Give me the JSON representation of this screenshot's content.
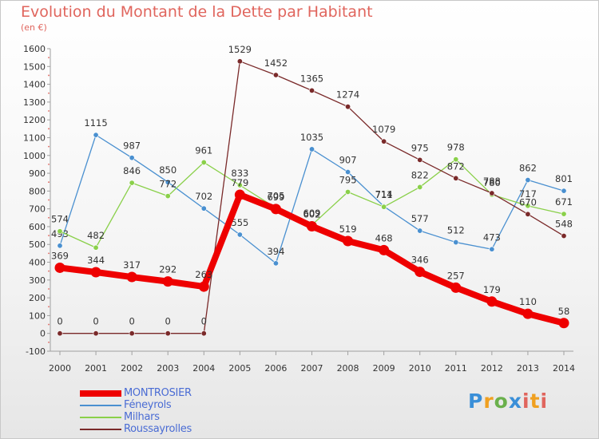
{
  "header": {
    "title": "Evolution du Montant de la Dette par Habitant",
    "subtitle": "(en €)"
  },
  "logo": {
    "text": "Proxiti",
    "letters": [
      "P",
      "r",
      "o",
      "x",
      "i",
      "t",
      "i"
    ]
  },
  "chart_data": {
    "type": "line",
    "title": "Evolution du Montant de la Dette par Habitant",
    "ylabel": "(en €)",
    "xlabel": "",
    "ylim": [
      -100,
      1600
    ],
    "yticks": [
      -100,
      0,
      100,
      200,
      300,
      400,
      500,
      600,
      700,
      800,
      900,
      1000,
      1100,
      1200,
      1300,
      1400,
      1500,
      1600
    ],
    "grid": false,
    "legend_position": "bottom-left",
    "categories": [
      "2000",
      "2001",
      "2002",
      "2003",
      "2004",
      "2005",
      "2006",
      "2007",
      "2008",
      "2009",
      "2010",
      "2011",
      "2012",
      "2013",
      "2014"
    ],
    "series": [
      {
        "name": "Féneyrols",
        "color": "#4a90d0",
        "values": [
          493,
          1115,
          987,
          850,
          702,
          555,
          394,
          1035,
          907,
          714,
          577,
          512,
          473,
          862,
          801
        ],
        "labels": [
          "493",
          "1115",
          "987",
          "850",
          "702",
          "555",
          "394",
          "1035",
          "907",
          "714",
          "577",
          "512",
          "473",
          "862",
          "801"
        ]
      },
      {
        "name": "Milhars",
        "color": "#8ad04a",
        "values": [
          574,
          482,
          846,
          772,
          961,
          833,
          705,
          609,
          795,
          711,
          822,
          978,
          780,
          717,
          671
        ],
        "labels": [
          "574",
          "482",
          "846",
          "772",
          "961",
          "833",
          "705",
          "609",
          "795",
          "711",
          "822",
          "978",
          "780",
          "717",
          "671"
        ]
      },
      {
        "name": "Roussayrolles",
        "color": "#7a2a2a",
        "values": [
          0,
          0,
          0,
          0,
          0,
          1529,
          1452,
          1365,
          1274,
          1079,
          975,
          872,
          788,
          670,
          548
        ],
        "labels": [
          "0",
          "0",
          "0",
          "0",
          "0",
          "1529",
          "1452",
          "1365",
          "1274",
          "1079",
          "975",
          "872",
          "788",
          "670",
          "548"
        ]
      },
      {
        "name": "MONTROSIER",
        "color": "#ee0000",
        "values": [
          369,
          344,
          317,
          292,
          263,
          779,
          699,
          602,
          519,
          468,
          346,
          257,
          179,
          110,
          58
        ],
        "labels": [
          "369",
          "344",
          "317",
          "292",
          "263",
          "779",
          "699",
          "602",
          "519",
          "468",
          "346",
          "257",
          "179",
          "110",
          "58"
        ]
      }
    ],
    "legend_order": [
      "MONTROSIER",
      "Féneyrols",
      "Milhars",
      "Roussayrolles"
    ]
  }
}
